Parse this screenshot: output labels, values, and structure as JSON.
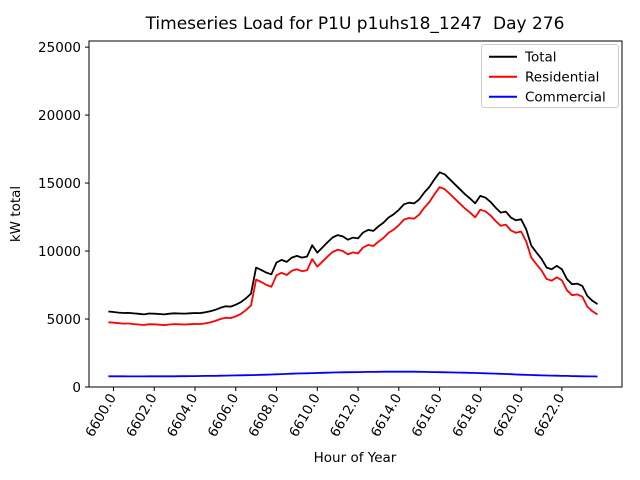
{
  "chart_data": {
    "type": "line",
    "title": "Timeseries Load for P1U p1uhs18_1247  Day 276",
    "xlabel": "Hour of Year",
    "ylabel": "kW total",
    "grid": false,
    "legend_position": "upper right",
    "background_color": "#ffffff",
    "axis_color": "#000000",
    "legend_border_color": "#cccccc",
    "xlim": [
      6598.8,
      6624.95
    ],
    "ylim": [
      0,
      25450
    ],
    "xticks": [
      6600,
      6602,
      6604,
      6606,
      6608,
      6610,
      6612,
      6614,
      6616,
      6618,
      6620,
      6622
    ],
    "xtick_labels": [
      "6600.0",
      "6602.0",
      "6604.0",
      "6606.0",
      "6608.0",
      "6610.0",
      "6612.0",
      "6614.0",
      "6616.0",
      "6618.0",
      "6620.0",
      "6622.0"
    ],
    "yticks": [
      0,
      5000,
      10000,
      15000,
      20000,
      25000
    ],
    "ytick_labels": [
      "0",
      "5000",
      "10000",
      "15000",
      "20000",
      "25000"
    ],
    "x_start": 6599.75,
    "x_step": 0.25,
    "x": [
      6599.75,
      6600.0,
      6600.25,
      6600.5,
      6600.75,
      6601.0,
      6601.25,
      6601.5,
      6601.75,
      6602.0,
      6602.25,
      6602.5,
      6602.75,
      6603.0,
      6603.25,
      6603.5,
      6603.75,
      6604.0,
      6604.25,
      6604.5,
      6604.75,
      6605.0,
      6605.25,
      6605.5,
      6605.75,
      6606.0,
      6606.25,
      6606.5,
      6606.75,
      6607.0,
      6607.25,
      6607.5,
      6607.75,
      6608.0,
      6608.25,
      6608.5,
      6608.75,
      6609.0,
      6609.25,
      6609.5,
      6609.75,
      6610.0,
      6610.25,
      6610.5,
      6610.75,
      6611.0,
      6611.25,
      6611.5,
      6611.75,
      6612.0,
      6612.25,
      6612.5,
      6612.75,
      6613.0,
      6613.25,
      6613.5,
      6613.75,
      6614.0,
      6614.25,
      6614.5,
      6614.75,
      6615.0,
      6615.25,
      6615.5,
      6615.75,
      6616.0,
      6616.25,
      6616.5,
      6616.75,
      6617.0,
      6617.25,
      6617.5,
      6617.75,
      6618.0,
      6618.25,
      6618.5,
      6618.75,
      6619.0,
      6619.25,
      6619.5,
      6619.75,
      6620.0,
      6620.25,
      6620.5,
      6620.75,
      6621.0,
      6621.25,
      6621.5,
      6621.75,
      6622.0,
      6622.25,
      6622.5,
      6622.75,
      6623.0,
      6623.25,
      6623.5,
      6623.75
    ],
    "series": [
      {
        "name": "Total",
        "color": "#000000",
        "values": [
          5550,
          5518,
          5476,
          5444,
          5452,
          5410,
          5381,
          5342,
          5404,
          5395,
          5366,
          5337,
          5389,
          5420,
          5404,
          5398,
          5421,
          5445,
          5439,
          5493,
          5566,
          5680,
          5828,
          5935,
          5913,
          6050,
          6238,
          6515,
          6873,
          8780,
          8614,
          8418,
          8291,
          9155,
          9349,
          9203,
          9521,
          9645,
          9521,
          9596,
          10427,
          9888,
          10258,
          10644,
          10994,
          11175,
          11081,
          10836,
          10992,
          10928,
          11363,
          11559,
          11484,
          11810,
          12093,
          12465,
          12708,
          13030,
          13438,
          13555,
          13503,
          13800,
          14303,
          14715,
          15278,
          15790,
          15643,
          15280,
          14913,
          14545,
          14175,
          13860,
          13510,
          14060,
          13928,
          13615,
          13193,
          12830,
          12899,
          12458,
          12261,
          12340,
          11598,
          10400,
          9898,
          9430,
          8791,
          8658,
          8909,
          8660,
          7928,
          7560,
          7608,
          7440,
          6698,
          6342,
          6100
        ]
      },
      {
        "name": "Residential",
        "color": "#ff0000",
        "values": [
          4760,
          4730,
          4690,
          4660,
          4670,
          4630,
          4600,
          4560,
          4620,
          4610,
          4580,
          4550,
          4600,
          4630,
          4610,
          4600,
          4620,
          4640,
          4630,
          4680,
          4750,
          4860,
          5000,
          5100,
          5070,
          5200,
          5380,
          5650,
          6000,
          7900,
          7720,
          7510,
          7370,
          8220,
          8400,
          8240,
          8545,
          8655,
          8520,
          8585,
          9405,
          8855,
          9215,
          9590,
          9930,
          10100,
          10000,
          9750,
          9900,
          9830,
          10260,
          10450,
          10370,
          10690,
          10970,
          11340,
          11580,
          11900,
          12310,
          12430,
          12380,
          12680,
          13190,
          13610,
          14180,
          14700,
          14560,
          14205,
          13845,
          13485,
          13125,
          12820,
          12480,
          13040,
          12920,
          12620,
          12210,
          11860,
          11945,
          11520,
          11340,
          11435,
          10705,
          9520,
          9030,
          8575,
          7945,
          7820,
          8080,
          7840,
          7115,
          6755,
          6810,
          6650,
          5915,
          5565,
          5330
        ]
      },
      {
        "name": "Commercial",
        "color": "#0000ff",
        "values": [
          790,
          788,
          786,
          784,
          782,
          780,
          781,
          782,
          784,
          785,
          786,
          787,
          789,
          790,
          794,
          798,
          801,
          805,
          809,
          813,
          816,
          820,
          828,
          835,
          843,
          850,
          858,
          865,
          873,
          880,
          894,
          908,
          921,
          935,
          949,
          963,
          976,
          990,
          1001,
          1011,
          1022,
          1033,
          1043,
          1054,
          1064,
          1075,
          1081,
          1086,
          1092,
          1098,
          1103,
          1109,
          1114,
          1120,
          1123,
          1125,
          1128,
          1130,
          1128,
          1125,
          1123,
          1120,
          1113,
          1105,
          1098,
          1090,
          1083,
          1075,
          1068,
          1060,
          1050,
          1040,
          1030,
          1020,
          1008,
          995,
          983,
          970,
          954,
          938,
          921,
          905,
          893,
          880,
          868,
          855,
          846,
          838,
          829,
          820,
          813,
          805,
          798,
          790,
          783,
          777,
          770
        ]
      }
    ]
  }
}
